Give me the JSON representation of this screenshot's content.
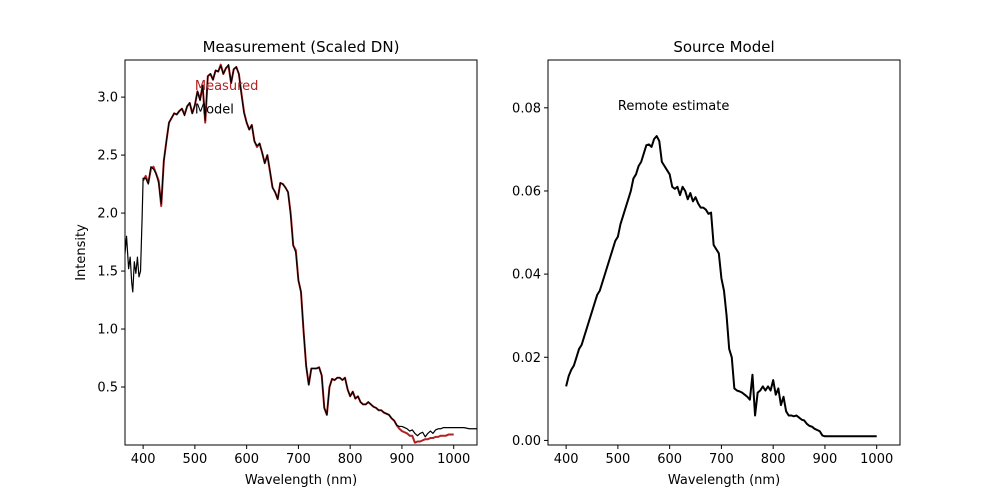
{
  "chart_data": [
    {
      "type": "line",
      "title": "Measurement (Scaled DN)",
      "xlabel": "Wavelength (nm)",
      "ylabel": "Intensity",
      "xlim": [
        365,
        1045
      ],
      "ylim": [
        0.0,
        3.32
      ],
      "xticks": [
        400,
        500,
        600,
        700,
        800,
        900,
        1000
      ],
      "yticks": [
        0.5,
        1.0,
        1.5,
        2.0,
        2.5,
        3.0
      ],
      "xtick_labels": [
        "400",
        "500",
        "600",
        "700",
        "800",
        "900",
        "1000"
      ],
      "ytick_labels": [
        "0.5",
        "1.0",
        "1.5",
        "2.0",
        "2.5",
        "3.0"
      ],
      "annotations": [
        {
          "text": "Measured",
          "x": 500,
          "y": 3.06,
          "color": "#b22222"
        },
        {
          "text": "Model",
          "x": 500,
          "y": 2.86,
          "color": "#000000"
        }
      ],
      "series": [
        {
          "name": "Measured",
          "color": "#b22222",
          "x": [
            400,
            405,
            410,
            415,
            420,
            425,
            430,
            435,
            440,
            445,
            450,
            455,
            460,
            465,
            470,
            475,
            480,
            485,
            490,
            495,
            500,
            505,
            510,
            515,
            520,
            525,
            530,
            535,
            540,
            545,
            550,
            555,
            560,
            565,
            570,
            575,
            580,
            585,
            590,
            595,
            600,
            605,
            610,
            615,
            620,
            625,
            630,
            635,
            640,
            645,
            650,
            655,
            660,
            665,
            670,
            675,
            680,
            685,
            690,
            695,
            700,
            705,
            710,
            715,
            720,
            725,
            730,
            735,
            740,
            745,
            750,
            755,
            760,
            765,
            770,
            775,
            780,
            785,
            790,
            795,
            800,
            805,
            810,
            815,
            820,
            825,
            830,
            835,
            840,
            845,
            850,
            855,
            860,
            865,
            870,
            875,
            880,
            885,
            890,
            895,
            900,
            905,
            910,
            915,
            920,
            925,
            930,
            935,
            940,
            945,
            950,
            955,
            960,
            965,
            970,
            975,
            980,
            985,
            990,
            995,
            1000
          ],
          "values": [
            2.28,
            2.32,
            2.26,
            2.38,
            2.4,
            2.34,
            2.28,
            2.06,
            2.45,
            2.62,
            2.78,
            2.82,
            2.86,
            2.85,
            2.88,
            2.9,
            2.85,
            2.92,
            2.95,
            2.86,
            2.93,
            3.05,
            2.98,
            3.1,
            2.78,
            3.18,
            3.2,
            3.15,
            3.23,
            3.22,
            3.28,
            3.2,
            3.25,
            3.27,
            3.12,
            3.24,
            3.26,
            3.2,
            3.03,
            2.87,
            2.78,
            2.72,
            2.76,
            2.62,
            2.57,
            2.6,
            2.52,
            2.43,
            2.5,
            2.36,
            2.22,
            2.18,
            2.12,
            2.26,
            2.25,
            2.22,
            2.18,
            2.0,
            1.72,
            1.68,
            1.42,
            1.32,
            0.98,
            0.68,
            0.52,
            0.66,
            0.66,
            0.66,
            0.67,
            0.6,
            0.32,
            0.26,
            0.5,
            0.57,
            0.56,
            0.58,
            0.58,
            0.56,
            0.58,
            0.48,
            0.42,
            0.46,
            0.4,
            0.42,
            0.37,
            0.35,
            0.35,
            0.37,
            0.35,
            0.33,
            0.32,
            0.3,
            0.3,
            0.28,
            0.27,
            0.26,
            0.23,
            0.21,
            0.17,
            0.14,
            0.12,
            0.11,
            0.1,
            0.08,
            0.08,
            0.02,
            0.03,
            0.03,
            0.04,
            0.05,
            0.05,
            0.06,
            0.06,
            0.07,
            0.07,
            0.08,
            0.08,
            0.08,
            0.09,
            0.09,
            0.09
          ],
          "line_width": 2.0
        },
        {
          "name": "Model",
          "color": "#000000",
          "x": [
            365,
            368,
            372,
            375,
            378,
            380,
            383,
            386,
            389,
            392,
            395,
            398,
            400,
            405,
            410,
            415,
            420,
            425,
            430,
            435,
            440,
            445,
            450,
            455,
            460,
            465,
            470,
            475,
            480,
            485,
            490,
            495,
            500,
            505,
            510,
            515,
            520,
            525,
            530,
            535,
            540,
            545,
            550,
            555,
            560,
            565,
            570,
            575,
            580,
            585,
            590,
            595,
            600,
            605,
            610,
            615,
            620,
            625,
            630,
            635,
            640,
            645,
            650,
            655,
            660,
            665,
            670,
            675,
            680,
            685,
            690,
            695,
            700,
            705,
            710,
            715,
            720,
            725,
            730,
            735,
            740,
            745,
            750,
            755,
            760,
            765,
            770,
            775,
            780,
            785,
            790,
            795,
            800,
            805,
            810,
            815,
            820,
            825,
            830,
            835,
            840,
            845,
            850,
            855,
            860,
            865,
            870,
            875,
            880,
            885,
            890,
            895,
            900,
            905,
            910,
            915,
            920,
            925,
            930,
            935,
            940,
            945,
            950,
            955,
            960,
            965,
            970,
            975,
            980,
            985,
            990,
            995,
            1000,
            1010,
            1020,
            1030,
            1045
          ],
          "values": [
            1.65,
            1.8,
            1.52,
            1.62,
            1.4,
            1.32,
            1.58,
            1.48,
            1.62,
            1.45,
            1.5,
            1.95,
            2.3,
            2.3,
            2.25,
            2.4,
            2.38,
            2.34,
            2.26,
            2.08,
            2.45,
            2.62,
            2.78,
            2.82,
            2.86,
            2.85,
            2.88,
            2.9,
            2.84,
            2.92,
            2.95,
            2.86,
            2.93,
            3.05,
            2.97,
            3.1,
            2.8,
            3.18,
            3.2,
            3.15,
            3.23,
            3.22,
            3.27,
            3.2,
            3.25,
            3.28,
            3.12,
            3.24,
            3.26,
            3.2,
            3.02,
            2.86,
            2.78,
            2.72,
            2.76,
            2.62,
            2.58,
            2.6,
            2.52,
            2.43,
            2.5,
            2.37,
            2.22,
            2.18,
            2.12,
            2.26,
            2.25,
            2.22,
            2.18,
            1.98,
            1.72,
            1.66,
            1.42,
            1.32,
            0.98,
            0.68,
            0.52,
            0.66,
            0.66,
            0.66,
            0.67,
            0.6,
            0.32,
            0.26,
            0.5,
            0.57,
            0.56,
            0.58,
            0.58,
            0.56,
            0.58,
            0.48,
            0.42,
            0.46,
            0.4,
            0.42,
            0.37,
            0.35,
            0.35,
            0.37,
            0.35,
            0.33,
            0.32,
            0.3,
            0.3,
            0.28,
            0.27,
            0.26,
            0.23,
            0.21,
            0.17,
            0.16,
            0.16,
            0.15,
            0.14,
            0.12,
            0.13,
            0.1,
            0.08,
            0.1,
            0.11,
            0.07,
            0.1,
            0.12,
            0.1,
            0.13,
            0.14,
            0.14,
            0.15,
            0.15,
            0.15,
            0.15,
            0.15,
            0.15,
            0.15,
            0.14,
            0.14
          ],
          "line_width": 1.2
        }
      ]
    },
    {
      "type": "line",
      "title": "Source Model",
      "xlabel": "Wavelength (nm)",
      "ylabel": "",
      "xlim": [
        365,
        1045
      ],
      "ylim": [
        -0.0011,
        0.0915
      ],
      "xticks": [
        400,
        500,
        600,
        700,
        800,
        900,
        1000
      ],
      "yticks": [
        0.0,
        0.02,
        0.04,
        0.06,
        0.08
      ],
      "xtick_labels": [
        "400",
        "500",
        "600",
        "700",
        "800",
        "900",
        "1000"
      ],
      "ytick_labels": [
        "0.00",
        "0.02",
        "0.04",
        "0.06",
        "0.08"
      ],
      "annotations": [
        {
          "text": "Remote estimate",
          "x": 500,
          "y": 0.0795,
          "color": "#000000"
        }
      ],
      "series": [
        {
          "name": "",
          "color": "#000000",
          "x": [
            400,
            405,
            410,
            415,
            420,
            425,
            430,
            435,
            440,
            445,
            450,
            455,
            460,
            465,
            470,
            475,
            480,
            485,
            490,
            495,
            500,
            505,
            510,
            515,
            520,
            525,
            530,
            535,
            540,
            545,
            550,
            555,
            560,
            565,
            570,
            575,
            580,
            585,
            590,
            595,
            600,
            605,
            610,
            615,
            620,
            625,
            630,
            635,
            640,
            645,
            650,
            655,
            660,
            665,
            670,
            675,
            680,
            685,
            690,
            695,
            700,
            705,
            710,
            715,
            720,
            725,
            730,
            735,
            740,
            745,
            750,
            755,
            760,
            765,
            770,
            775,
            780,
            785,
            790,
            795,
            800,
            805,
            810,
            815,
            820,
            825,
            830,
            835,
            840,
            845,
            850,
            855,
            860,
            865,
            870,
            875,
            880,
            885,
            890,
            895,
            900,
            950,
            1000
          ],
          "values": [
            0.013,
            0.0155,
            0.017,
            0.018,
            0.02,
            0.022,
            0.023,
            0.025,
            0.027,
            0.029,
            0.031,
            0.033,
            0.035,
            0.036,
            0.038,
            0.04,
            0.042,
            0.044,
            0.046,
            0.048,
            0.049,
            0.052,
            0.054,
            0.056,
            0.058,
            0.06,
            0.063,
            0.064,
            0.066,
            0.067,
            0.069,
            0.071,
            0.0712,
            0.0706,
            0.0725,
            0.0732,
            0.072,
            0.067,
            0.066,
            0.065,
            0.064,
            0.061,
            0.0605,
            0.061,
            0.059,
            0.061,
            0.06,
            0.058,
            0.0595,
            0.0575,
            0.0585,
            0.057,
            0.056,
            0.056,
            0.0555,
            0.0545,
            0.0548,
            0.047,
            0.046,
            0.045,
            0.039,
            0.036,
            0.03,
            0.022,
            0.02,
            0.0125,
            0.012,
            0.0118,
            0.0115,
            0.011,
            0.0105,
            0.0098,
            0.0158,
            0.006,
            0.0115,
            0.012,
            0.013,
            0.012,
            0.013,
            0.012,
            0.0145,
            0.011,
            0.0125,
            0.0085,
            0.0105,
            0.007,
            0.006,
            0.006,
            0.0058,
            0.006,
            0.0055,
            0.005,
            0.0048,
            0.004,
            0.0035,
            0.0033,
            0.0028,
            0.0025,
            0.0022,
            0.0012,
            0.001,
            0.001,
            0.001
          ],
          "line_width": 2.0
        }
      ]
    }
  ]
}
